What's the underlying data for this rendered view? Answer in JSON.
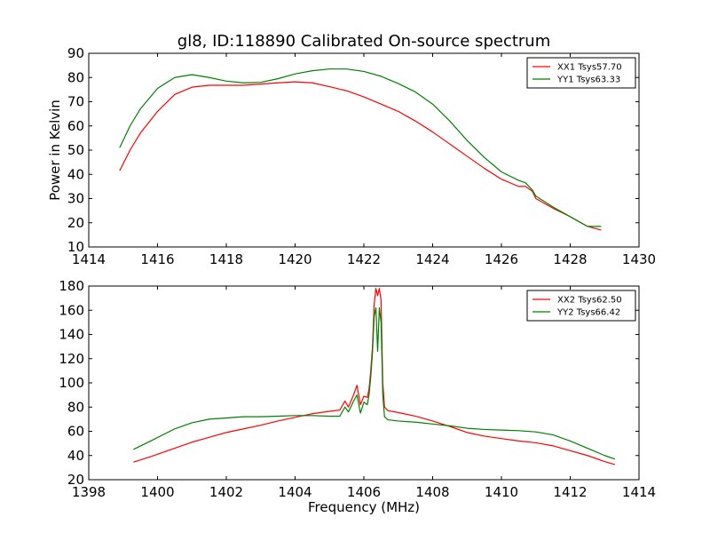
{
  "chart_data": [
    {
      "type": "line",
      "title": "gl8, ID:118890 Calibrated On-source spectrum",
      "xlabel": "",
      "ylabel": "Power in Kelvin",
      "xlim": [
        1414,
        1430
      ],
      "ylim": [
        10,
        90
      ],
      "xticks": [
        1414,
        1416,
        1418,
        1420,
        1422,
        1424,
        1426,
        1428,
        1430
      ],
      "yticks": [
        10,
        20,
        30,
        40,
        50,
        60,
        70,
        80,
        90
      ],
      "legend_position": "top-right",
      "grid": false,
      "series": [
        {
          "name": "XX1 Tsys57.70",
          "color": "#ff0000",
          "x": [
            1414.9,
            1415.2,
            1415.5,
            1416.0,
            1416.5,
            1417.0,
            1417.5,
            1418.0,
            1418.5,
            1419.0,
            1419.5,
            1420.0,
            1420.5,
            1421.0,
            1421.5,
            1422.0,
            1422.5,
            1423.0,
            1423.5,
            1424.0,
            1424.5,
            1425.0,
            1425.5,
            1426.0,
            1426.5,
            1426.7,
            1426.9,
            1427.0,
            1427.5,
            1428.0,
            1428.5,
            1428.9
          ],
          "y": [
            41.5,
            50,
            57,
            66,
            73,
            76,
            76.8,
            76.8,
            76.8,
            77.3,
            77.8,
            78.2,
            77.8,
            76.2,
            74.5,
            72,
            69,
            66,
            62,
            57.5,
            52.5,
            47.5,
            42.5,
            38,
            35,
            35,
            33,
            30,
            26,
            22.5,
            18.5,
            17
          ]
        },
        {
          "name": "YY1 Tsys63.33",
          "color": "#008000",
          "x": [
            1414.9,
            1415.2,
            1415.5,
            1416.0,
            1416.5,
            1417.0,
            1417.5,
            1418.0,
            1418.5,
            1419.0,
            1419.5,
            1420.0,
            1420.5,
            1421.0,
            1421.5,
            1422.0,
            1422.5,
            1423.0,
            1423.5,
            1424.0,
            1424.5,
            1425.0,
            1425.5,
            1426.0,
            1426.5,
            1426.7,
            1426.9,
            1427.0,
            1427.5,
            1428.0,
            1428.5,
            1428.9
          ],
          "y": [
            51,
            60,
            67,
            75.5,
            80,
            81.2,
            80,
            78.5,
            77.8,
            78,
            79.5,
            81.5,
            82.8,
            83.5,
            83.5,
            82.5,
            80.5,
            77.5,
            74,
            69,
            62,
            54,
            47,
            41,
            37.5,
            36.5,
            33.5,
            31,
            26.5,
            22.5,
            18.5,
            18.5
          ]
        }
      ]
    },
    {
      "type": "line",
      "title": "",
      "xlabel": "Frequency (MHz)",
      "ylabel": "",
      "xlim": [
        1398,
        1414
      ],
      "ylim": [
        20,
        180
      ],
      "xticks": [
        1398,
        1400,
        1402,
        1404,
        1406,
        1408,
        1410,
        1412,
        1414
      ],
      "yticks": [
        20,
        40,
        60,
        80,
        100,
        120,
        140,
        160,
        180
      ],
      "legend_position": "top-right",
      "grid": false,
      "series": [
        {
          "name": "XX2 Tsys62.50",
          "color": "#ff0000",
          "x": [
            1399.3,
            1399.8,
            1400.5,
            1401.0,
            1401.5,
            1402.0,
            1402.5,
            1403.0,
            1403.5,
            1404.0,
            1404.5,
            1405.0,
            1405.3,
            1405.45,
            1405.55,
            1405.7,
            1405.8,
            1405.9,
            1406.0,
            1406.1,
            1406.15,
            1406.2,
            1406.25,
            1406.3,
            1406.35,
            1406.4,
            1406.45,
            1406.5,
            1406.55,
            1406.6,
            1406.7,
            1407.0,
            1407.5,
            1408.0,
            1408.5,
            1409.0,
            1409.5,
            1410.0,
            1410.5,
            1411.0,
            1411.5,
            1412.0,
            1412.5,
            1413.0,
            1413.3
          ],
          "y": [
            34.5,
            39,
            46,
            51,
            55,
            59,
            62,
            65,
            68.5,
            71.5,
            74.5,
            76.5,
            77.5,
            85,
            80,
            90,
            98,
            82,
            89,
            88,
            95,
            110,
            130,
            165,
            178,
            172,
            178,
            168,
            100,
            80,
            77,
            75.5,
            72.5,
            68.5,
            64,
            59,
            56,
            54,
            52,
            50.5,
            48,
            44,
            40,
            35,
            32.5
          ]
        },
        {
          "name": "YY2 Tsys66.42",
          "color": "#008000",
          "x": [
            1399.3,
            1399.8,
            1400.5,
            1401.0,
            1401.5,
            1402.0,
            1402.5,
            1403.0,
            1403.5,
            1404.0,
            1404.5,
            1405.0,
            1405.3,
            1405.45,
            1405.55,
            1405.7,
            1405.8,
            1405.9,
            1406.0,
            1406.1,
            1406.15,
            1406.2,
            1406.25,
            1406.3,
            1406.35,
            1406.4,
            1406.45,
            1406.5,
            1406.55,
            1406.6,
            1406.7,
            1407.0,
            1407.5,
            1408.0,
            1408.5,
            1409.0,
            1409.5,
            1410.0,
            1410.5,
            1411.0,
            1411.5,
            1412.0,
            1412.5,
            1413.0,
            1413.3
          ],
          "y": [
            45,
            52,
            62,
            67,
            70,
            71,
            72,
            72,
            72.5,
            73,
            73,
            72.5,
            72.5,
            80,
            76,
            85,
            90,
            75,
            84,
            82,
            90,
            105,
            125,
            155,
            162,
            126,
            162,
            150,
            90,
            72,
            69.5,
            68.5,
            67.5,
            66,
            64.5,
            62.5,
            61.5,
            61,
            60.5,
            59.5,
            57,
            52,
            46,
            40,
            37
          ]
        }
      ]
    }
  ]
}
